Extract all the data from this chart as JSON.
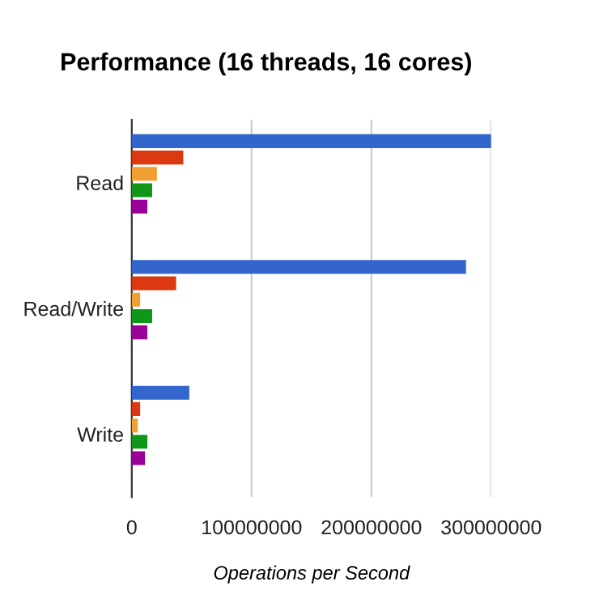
{
  "chart_data": {
    "type": "bar",
    "orientation": "horizontal",
    "title": "Performance (16 threads, 16 cores)",
    "xlabel": "Operations per Second",
    "categories": [
      "Read",
      "Read/Write",
      "Write"
    ],
    "series": [
      {
        "color": "#3366cc",
        "values": [
          300000000,
          279000000,
          48000000
        ]
      },
      {
        "color": "#dc3912",
        "values": [
          43000000,
          37000000,
          7000000
        ]
      },
      {
        "color": "#f0a030",
        "values": [
          21000000,
          7000000,
          5000000
        ]
      },
      {
        "color": "#109618",
        "values": [
          17000000,
          17000000,
          13000000
        ]
      },
      {
        "color": "#990099",
        "values": [
          13000000,
          13000000,
          11000000
        ]
      }
    ],
    "xlim": [
      0,
      300000000
    ],
    "xticks": [
      0,
      100000000,
      200000000,
      300000000
    ],
    "grid": "x",
    "legend": false
  }
}
